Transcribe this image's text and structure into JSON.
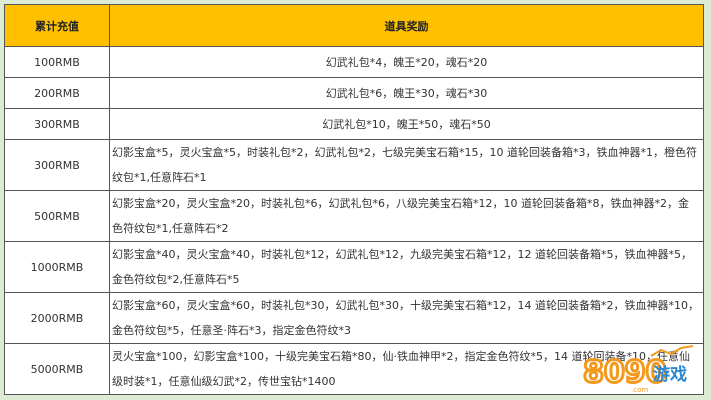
{
  "header": {
    "amount": "累计充值",
    "reward": "道具奖励"
  },
  "rows": [
    {
      "amount": "100RMB",
      "reward": "幻武礼包*4，魄王*20，魂石*20"
    },
    {
      "amount": "200RMB",
      "reward": "幻武礼包*6，魄王*30，魂石*30"
    },
    {
      "amount": "300RMB",
      "reward": "幻武礼包*10，魄王*50，魂石*50"
    },
    {
      "amount": "300RMB",
      "reward": "幻影宝盒*5，灵火宝盒*5，时装礼包*2，幻武礼包*2，七级完美宝石箱*15，10 道轮回装备箱*3，铁血神器*1，橙色符纹包*1,任意阵石*1"
    },
    {
      "amount": "500RMB",
      "reward": "幻影宝盒*20，灵火宝盒*20，时装礼包*6，幻武礼包*6，八级完美宝石箱*12，10 道轮回装备箱*8，铁血神器*2，金色符纹包*1,任意阵石*2"
    },
    {
      "amount": "1000RMB",
      "reward": "幻影宝盒*40，灵火宝盒*40，时装礼包*12，幻武礼包*12，九级完美宝石箱*12，12 道轮回装备箱*5，铁血神器*5，金色符纹包*2,任意阵石*5"
    },
    {
      "amount": "2000RMB",
      "reward": "幻影宝盒*60，灵火宝盒*60，时装礼包*30，幻武礼包*30，十级完美宝石箱*12，14 道轮回装备箱*2，铁血神器*10，金色符纹包*5，任意圣·阵石*3，指定金色符纹*3"
    },
    {
      "amount": "5000RMB",
      "reward": "灵火宝盒*100，幻影宝盒*100，十级完美宝石箱*80，仙·铁血神甲*2，指定金色符纹*5，14 道轮回装备*10，任意仙级时装*1，任意仙级幻武*2，传世宝钻*1400"
    }
  ],
  "watermark": {
    "text": "8090游戏 .com"
  },
  "colors": {
    "header_bg": "#ffc000",
    "watermark": "#f39a1e"
  }
}
